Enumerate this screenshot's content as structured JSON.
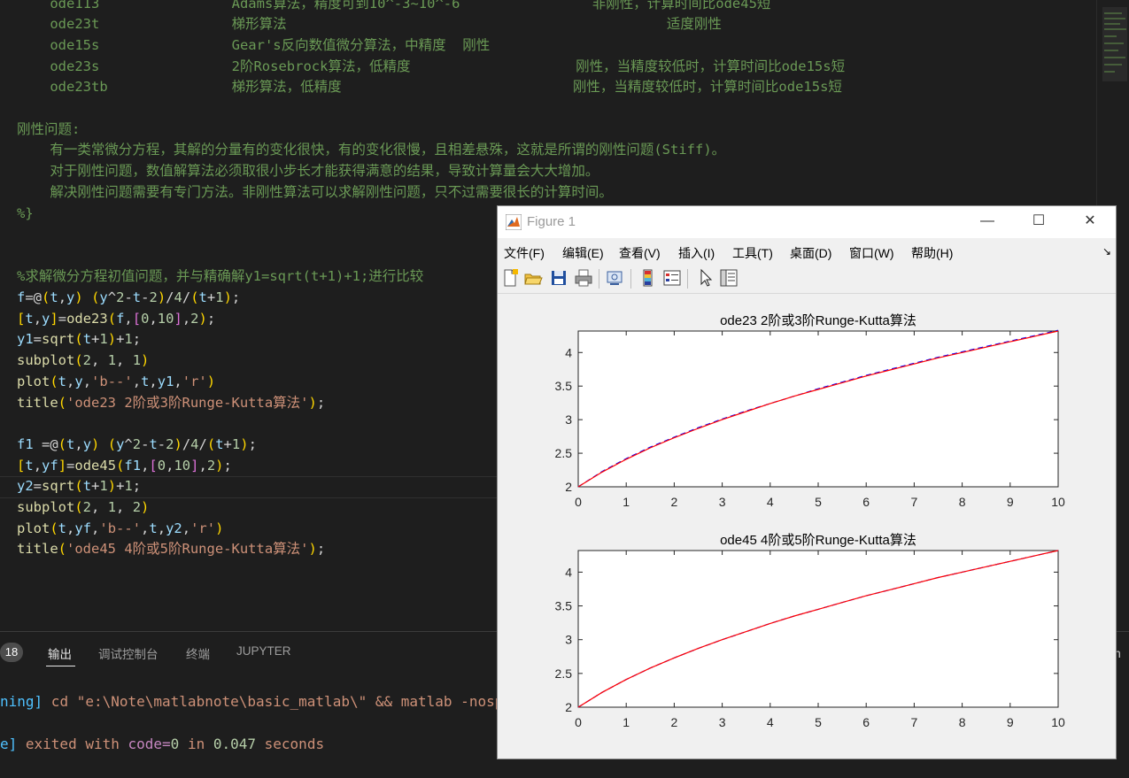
{
  "editor": {
    "lines": [
      {
        "text": "    ode113                Adams算法，精度可到10^-3~10^-6                非刚性，计算时间比ode45短"
      },
      {
        "text": "    ode23t                梯形算法                                              适度刚性"
      },
      {
        "text": "    ode15s                Gear's反向数值微分算法，中精度  刚性"
      },
      {
        "text": "    ode23s                2阶Rosebrock算法，低精度                    刚性，当精度较低时，计算时间比ode15s短"
      },
      {
        "text": "    ode23tb               梯形算法，低精度                            刚性，当精度较低时，计算时间比ode15s短"
      },
      {
        "text": ""
      },
      {
        "text": "刚性问题:"
      },
      {
        "text": "    有一类常微分方程，其解的分量有的变化很快，有的变化很慢，且相差悬殊，这就是所谓的刚性问题(Stiff)。"
      },
      {
        "text": "    对于刚性问题，数值解算法必须取很小步长才能获得满意的结果，导致计算量会大大增加。"
      },
      {
        "text": "    解决刚性问题需要有专门方法。非刚性算法可以求解刚性问题，只不过需要很长的计算时间。"
      },
      {
        "text": "%}"
      },
      {
        "text": ""
      },
      {
        "text": ""
      },
      {
        "text": "%求解微分方程初值问题，并与精确解y1=sqrt(t+1)+1;进行比较"
      }
    ],
    "code": [
      "f=@(t,y) (y^2-t-2)/4/(t+1);",
      "[t,y]=ode23(f,[0,10],2);",
      "y1=sqrt(t+1)+1;",
      "subplot(2, 1, 1)",
      "plot(t,y,'b--',t,y1,'r')",
      "title('ode23 2阶或3阶Runge-Kutta算法');",
      "",
      "f1 =@(t,y) (y^2-t-2)/4/(t+1);",
      "[t,yf]=ode45(f1,[0,10],2);",
      "y2=sqrt(t+1)+1;",
      "subplot(2, 1, 2)",
      "plot(t,yf,'b--',t,y2,'r')",
      "title('ode45 4阶或5阶Runge-Kutta算法');"
    ]
  },
  "panel": {
    "badge": "18",
    "tabs": [
      "输出",
      "调试控制台",
      "终端",
      "JUPYTER"
    ],
    "right_glyph": "h",
    "terminal": {
      "line1_prefix": "ning]",
      "line1_cmd": " cd \"e:\\Note\\matlabnote\\basic_matlab\\\" && matlab -nosp",
      "line2_prefix": "e]",
      "line2_a": " exited with ",
      "line2_code": "code=",
      "line2_codeval": "0",
      "line2_b": " in ",
      "line2_time": "0.047",
      "line2_c": " seconds"
    }
  },
  "figure": {
    "title": "Figure 1",
    "window_buttons": {
      "minimize": "—",
      "maximize": "☐",
      "close": "✕"
    },
    "menu": [
      "文件(F)",
      "编辑(E)",
      "查看(V)",
      "插入(I)",
      "工具(T)",
      "桌面(D)",
      "窗口(W)",
      "帮助(H)"
    ],
    "menu_arrow": "↘",
    "toolbar_icons": [
      "new-figure-icon",
      "open-file-icon",
      "save-icon",
      "print-icon",
      "link-icon",
      "colorbar-icon",
      "legend-icon",
      "pointer-icon",
      "property-inspector-icon"
    ],
    "colors": {
      "dashed_series": "#0000ff",
      "solid_series": "#ff0000"
    }
  },
  "chart_data": [
    {
      "type": "line",
      "title": "ode23 2阶或3阶Runge-Kutta算法",
      "xlabel": "",
      "ylabel": "",
      "xlim": [
        0,
        10
      ],
      "ylim": [
        2,
        4.32
      ],
      "xticks": [
        "0",
        "1",
        "2",
        "3",
        "4",
        "5",
        "6",
        "7",
        "8",
        "9",
        "10"
      ],
      "yticks": [
        "2",
        "2.5",
        "3",
        "3.5",
        "4"
      ],
      "grid": false,
      "series": [
        {
          "style": "b--",
          "x": [
            0,
            0.5,
            1,
            1.5,
            2,
            2.5,
            3,
            3.5,
            4,
            4.5,
            5,
            5.5,
            6,
            6.5,
            7,
            7.5,
            8,
            8.5,
            9,
            9.5,
            10
          ],
          "y": [
            2,
            2.23,
            2.42,
            2.59,
            2.74,
            2.88,
            3.01,
            3.13,
            3.24,
            3.35,
            3.46,
            3.56,
            3.66,
            3.75,
            3.84,
            3.93,
            4.01,
            4.09,
            4.17,
            4.25,
            4.33
          ]
        },
        {
          "style": "r",
          "x": [
            0,
            0.5,
            1,
            1.5,
            2,
            2.5,
            3,
            3.5,
            4,
            4.5,
            5,
            5.5,
            6,
            6.5,
            7,
            7.5,
            8,
            8.5,
            9,
            9.5,
            10
          ],
          "y": [
            2,
            2.22,
            2.41,
            2.58,
            2.73,
            2.87,
            3.0,
            3.12,
            3.24,
            3.35,
            3.45,
            3.55,
            3.65,
            3.74,
            3.83,
            3.92,
            4.0,
            4.08,
            4.16,
            4.24,
            4.32
          ]
        }
      ]
    },
    {
      "type": "line",
      "title": "ode45 4阶或5阶Runge-Kutta算法",
      "xlabel": "",
      "ylabel": "",
      "xlim": [
        0,
        10
      ],
      "ylim": [
        2,
        4.32
      ],
      "xticks": [
        "0",
        "1",
        "2",
        "3",
        "4",
        "5",
        "6",
        "7",
        "8",
        "9",
        "10"
      ],
      "yticks": [
        "2",
        "2.5",
        "3",
        "3.5",
        "4"
      ],
      "grid": false,
      "series": [
        {
          "style": "b--",
          "x": [
            0,
            0.5,
            1,
            1.5,
            2,
            2.5,
            3,
            3.5,
            4,
            4.5,
            5,
            5.5,
            6,
            6.5,
            7,
            7.5,
            8,
            8.5,
            9,
            9.5,
            10
          ],
          "y": [
            2,
            2.22,
            2.41,
            2.58,
            2.73,
            2.87,
            3.0,
            3.12,
            3.24,
            3.35,
            3.45,
            3.55,
            3.65,
            3.74,
            3.83,
            3.92,
            4.0,
            4.08,
            4.16,
            4.24,
            4.32
          ]
        },
        {
          "style": "r",
          "x": [
            0,
            0.5,
            1,
            1.5,
            2,
            2.5,
            3,
            3.5,
            4,
            4.5,
            5,
            5.5,
            6,
            6.5,
            7,
            7.5,
            8,
            8.5,
            9,
            9.5,
            10
          ],
          "y": [
            2,
            2.22,
            2.41,
            2.58,
            2.73,
            2.87,
            3.0,
            3.12,
            3.24,
            3.35,
            3.45,
            3.55,
            3.65,
            3.74,
            3.83,
            3.92,
            4.0,
            4.08,
            4.16,
            4.24,
            4.32
          ]
        }
      ]
    }
  ]
}
